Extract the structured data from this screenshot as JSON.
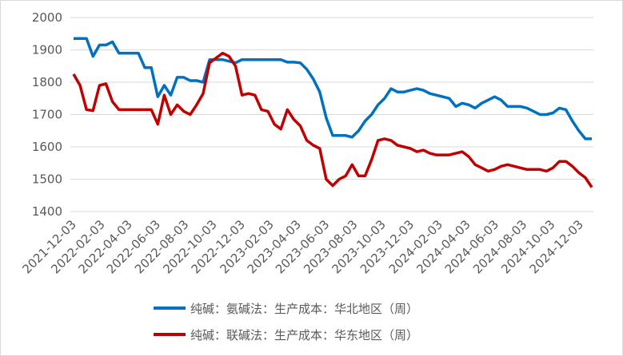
{
  "chart_data": {
    "type": "line",
    "x": [
      "2021-12-03",
      "2021-12-17",
      "2021-12-31",
      "2022-01-14",
      "2022-01-28",
      "2022-02-11",
      "2022-02-25",
      "2022-03-11",
      "2022-03-25",
      "2022-04-08",
      "2022-04-22",
      "2022-05-06",
      "2022-05-20",
      "2022-06-03",
      "2022-06-17",
      "2022-07-01",
      "2022-07-15",
      "2022-07-29",
      "2022-08-12",
      "2022-08-26",
      "2022-09-09",
      "2022-09-23",
      "2022-10-07",
      "2022-10-21",
      "2022-11-04",
      "2022-11-18",
      "2022-12-02",
      "2022-12-16",
      "2022-12-30",
      "2023-01-13",
      "2023-01-27",
      "2023-02-10",
      "2023-02-24",
      "2023-03-10",
      "2023-03-24",
      "2023-04-07",
      "2023-04-21",
      "2023-05-05",
      "2023-05-19",
      "2023-06-02",
      "2023-06-16",
      "2023-06-30",
      "2023-07-14",
      "2023-07-28",
      "2023-08-11",
      "2023-08-25",
      "2023-09-08",
      "2023-09-22",
      "2023-10-06",
      "2023-10-20",
      "2023-11-03",
      "2023-11-17",
      "2023-12-01",
      "2023-12-15",
      "2023-12-29",
      "2024-01-12",
      "2024-01-26",
      "2024-02-09",
      "2024-02-23",
      "2024-03-08",
      "2024-03-22",
      "2024-04-05",
      "2024-04-19",
      "2024-05-03",
      "2024-05-17",
      "2024-05-31",
      "2024-06-14",
      "2024-06-28",
      "2024-07-12",
      "2024-07-26",
      "2024-08-09",
      "2024-08-23",
      "2024-09-06",
      "2024-09-20",
      "2024-10-04",
      "2024-10-18",
      "2024-11-01",
      "2024-11-15",
      "2024-11-29",
      "2024-12-13",
      "2024-12-27"
    ],
    "series": [
      {
        "name": "纯碱：氨碱法：生产成本：华北地区（周）",
        "color": "#0070c0",
        "values": [
          1935,
          1935,
          1935,
          1880,
          1915,
          1915,
          1925,
          1890,
          1890,
          1890,
          1890,
          1845,
          1845,
          1755,
          1790,
          1760,
          1815,
          1815,
          1805,
          1805,
          1800,
          1870,
          1870,
          1870,
          1865,
          1860,
          1870,
          1870,
          1870,
          1870,
          1870,
          1870,
          1870,
          1862,
          1862,
          1860,
          1840,
          1810,
          1770,
          1690,
          1635,
          1635,
          1635,
          1630,
          1650,
          1680,
          1700,
          1730,
          1750,
          1780,
          1770,
          1770,
          1775,
          1780,
          1775,
          1765,
          1760,
          1755,
          1750,
          1725,
          1735,
          1730,
          1720,
          1735,
          1745,
          1755,
          1745,
          1725,
          1725,
          1725,
          1720,
          1710,
          1700,
          1700,
          1705,
          1720,
          1715,
          1680,
          1650,
          1625,
          1625
        ]
      },
      {
        "name": "纯碱：联碱法：生产成本：华东地区（周）",
        "color": "#c00000",
        "values": [
          1825,
          1790,
          1715,
          1712,
          1790,
          1795,
          1740,
          1715,
          1715,
          1715,
          1715,
          1715,
          1715,
          1670,
          1760,
          1700,
          1730,
          1710,
          1700,
          1730,
          1765,
          1860,
          1875,
          1890,
          1880,
          1850,
          1760,
          1765,
          1760,
          1715,
          1710,
          1670,
          1655,
          1715,
          1685,
          1665,
          1620,
          1605,
          1595,
          1500,
          1480,
          1500,
          1510,
          1545,
          1510,
          1510,
          1560,
          1620,
          1625,
          1620,
          1605,
          1600,
          1595,
          1585,
          1590,
          1580,
          1575,
          1575,
          1575,
          1580,
          1585,
          1570,
          1545,
          1535,
          1525,
          1530,
          1540,
          1545,
          1540,
          1535,
          1530,
          1530,
          1530,
          1525,
          1535,
          1555,
          1555,
          1540,
          1520,
          1505,
          1475
        ]
      }
    ],
    "xlim": [
      "2021-12-03",
      "2024-12-27"
    ],
    "xticks": [
      "2021-12-03",
      "2022-02-03",
      "2022-04-03",
      "2022-06-03",
      "2022-08-03",
      "2022-10-03",
      "2022-12-03",
      "2023-02-03",
      "2023-04-03",
      "2023-06-03",
      "2023-08-03",
      "2023-10-03",
      "2023-12-03",
      "2024-02-03",
      "2024-04-03",
      "2024-06-03",
      "2024-08-03",
      "2024-10-03",
      "2024-12-03"
    ],
    "ylim": [
      1400,
      2000
    ],
    "yticks": [
      1400,
      1500,
      1600,
      1700,
      1800,
      1900,
      2000
    ],
    "grid": true
  }
}
